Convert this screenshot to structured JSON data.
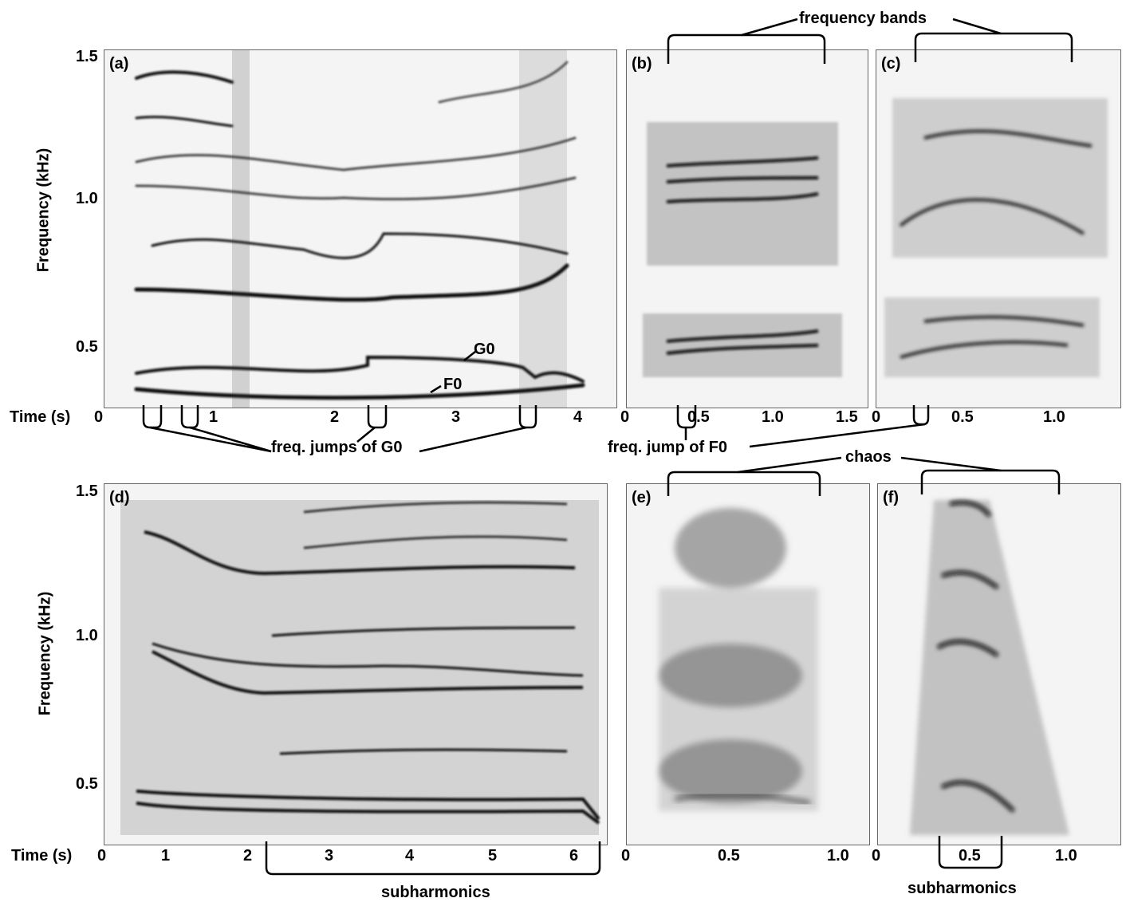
{
  "figure": {
    "panels": [
      {
        "id": "a",
        "label": "(a)"
      },
      {
        "id": "b",
        "label": "(b)"
      },
      {
        "id": "c",
        "label": "(c)"
      },
      {
        "id": "d",
        "label": "(d)"
      },
      {
        "id": "e",
        "label": "(e)"
      },
      {
        "id": "f",
        "label": "(f)"
      }
    ],
    "y_axis_label": "Frequency (kHz)",
    "x_axis_label": "Time (s)",
    "y_ticks": [
      "0.5",
      "1.0",
      "1.5"
    ],
    "ticks_a": [
      "0",
      "1",
      "2",
      "3",
      "4"
    ],
    "ticks_b": [
      "0",
      "0.5",
      "1.0",
      "1.5"
    ],
    "ticks_c": [
      "0",
      "0.5",
      "1.0"
    ],
    "ticks_d": [
      "0",
      "1",
      "2",
      "3",
      "4",
      "5",
      "6"
    ],
    "ticks_e": [
      "0",
      "0.5",
      "1.0"
    ],
    "ticks_f": [
      "0",
      "0.5",
      "1.0"
    ],
    "annotations": {
      "frequency_bands": "frequency bands",
      "freq_jumps_g0": "freq. jumps of G0",
      "freq_jump_f0": "freq. jump of F0",
      "chaos": "chaos",
      "subharmonics": "subharmonics",
      "g0": "G0",
      "f0": "F0"
    }
  }
}
